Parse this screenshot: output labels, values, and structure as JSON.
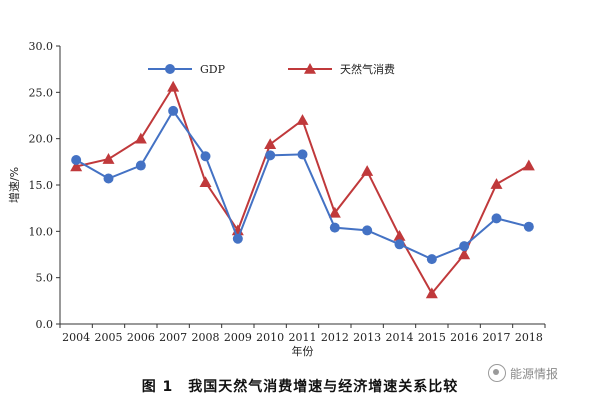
{
  "chart_data": {
    "type": "line",
    "categories": [
      "2004",
      "2005",
      "2006",
      "2007",
      "2008",
      "2009",
      "2010",
      "2011",
      "2012",
      "2013",
      "2014",
      "2015",
      "2016",
      "2017",
      "2018"
    ],
    "series": [
      {
        "name": "GDP",
        "values": [
          17.7,
          15.7,
          17.1,
          23.0,
          18.1,
          9.2,
          18.2,
          18.3,
          10.4,
          10.1,
          8.6,
          7.0,
          8.4,
          11.4,
          10.5
        ],
        "color": "#4472c4",
        "marker": "circle"
      },
      {
        "name": "天然气消费",
        "values": [
          17.0,
          17.8,
          20.0,
          25.6,
          15.3,
          10.1,
          19.4,
          22.0,
          12.0,
          16.5,
          9.5,
          3.3,
          7.5,
          15.1,
          17.1
        ],
        "color": "#c0393b",
        "marker": "triangle"
      }
    ],
    "yticks": [
      "0.0",
      "5.0",
      "10.0",
      "15.0",
      "20.0",
      "25.0",
      "30.0"
    ],
    "ylim": [
      0,
      30
    ],
    "xlabel": "年份",
    "ylabel": "增速/%",
    "grid": false,
    "legend_position": "top-center"
  },
  "caption": "图 1　我国天然气消费增速与经济增速关系比较",
  "watermark": "能源情报"
}
